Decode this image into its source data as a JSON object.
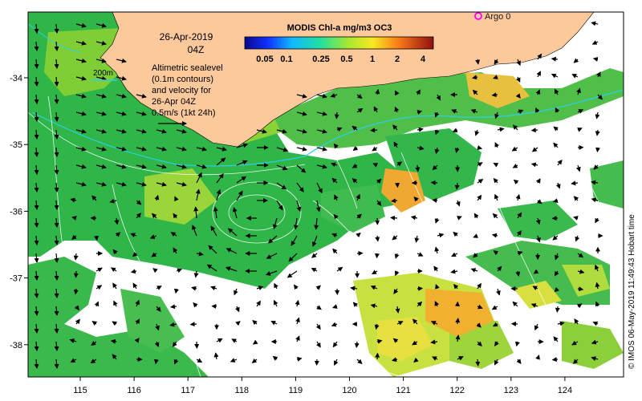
{
  "colorbar": {
    "title": "MODIS Chl-a mg/m3 OC3",
    "ticks": [
      "0.05",
      "0.1",
      "0.25",
      "0.5",
      "1",
      "2",
      "4"
    ]
  },
  "date_label": "26-Apr-2019",
  "time_label": "04Z",
  "legend": {
    "contour_label": "200m",
    "description_lines": [
      "Altimetric sealevel",
      "(0.1m contours)",
      "and velocity for",
      "26-Apr 04Z",
      "0.5m/s (1kt 24h)"
    ]
  },
  "argo": {
    "label": "Argo 0",
    "color": "#ff00ff"
  },
  "credit": "© IMOS 06-May-2019 11:49:43 Hobart time",
  "axes": {
    "x_ticks": [
      "115",
      "116",
      "117",
      "118",
      "119",
      "120",
      "121",
      "122",
      "123",
      "124"
    ],
    "y_ticks": [
      "-34",
      "-35",
      "-36",
      "-37",
      "-38"
    ]
  },
  "colors": {
    "land": "#fbc99b",
    "chl_low": "#22b14c",
    "chl_mid": "#7fcf2a",
    "chl_high": "#f4a224",
    "contour": "#ffffff",
    "shelf_contour": "#2ad0e8",
    "arrow": "#000000"
  }
}
